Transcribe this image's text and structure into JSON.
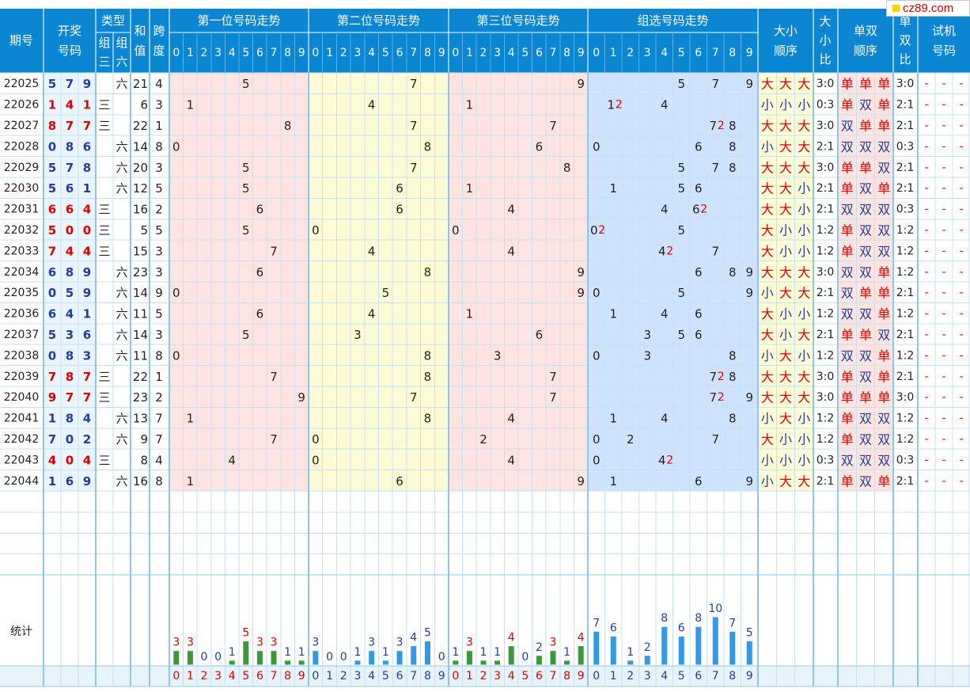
{
  "watermark": "cz89.com",
  "colors": {
    "header_bg": "#0a86d2",
    "header_text": "#ffffff",
    "grid_line": "#8fc7ec",
    "row_line": "#c4e2f6",
    "pos1_bg": "#fde4e0",
    "pos2_bg": "#fdfbd5",
    "pos3_bg": "#fde4e0",
    "group_bg": "#cfe2fb",
    "bigsmall_bg": "#fdfbd5",
    "oddeven_bg": "#fde4e0",
    "footer_bg": "#e6f3fb",
    "red": "#dd0000",
    "blue": "#1f3f9e",
    "dark": "#222222",
    "bar_green": "#3a9a3a",
    "bar_blue": "#3399e6"
  },
  "headers": {
    "period": "期号",
    "draw": "开奖号码",
    "type": "类型",
    "type_sub": [
      "组三",
      "组六"
    ],
    "sum": "和值",
    "span": "跨度",
    "pos1": "第一位号码走势",
    "pos2": "第二位号码走势",
    "pos3": "第三位号码走势",
    "group": "组选号码走势",
    "big_small_order": "大小顺序",
    "big_small_ratio": "大小比",
    "odd_even_order": "单双顺序",
    "odd_even_ratio": "单双比",
    "trial": "试机号码",
    "digits": [
      "0",
      "1",
      "2",
      "3",
      "4",
      "5",
      "6",
      "7",
      "8",
      "9"
    ]
  },
  "rows": [
    {
      "p": "22025",
      "d": "579",
      "t": "六",
      "s": "21",
      "k": "4",
      "g": [
        {
          "v": "5"
        },
        {
          "v": "7"
        },
        {
          "v": "9"
        }
      ],
      "bs": [
        "大",
        "大",
        "大"
      ],
      "bsr": "3:0",
      "oe": [
        "单",
        "单",
        "单"
      ],
      "oer": "3:0"
    },
    {
      "p": "22026",
      "d": "141",
      "t": "三",
      "s": "6",
      "k": "3",
      "g": [
        {
          "v": "1",
          "x": "2"
        },
        {
          "v": "4"
        }
      ],
      "bs": [
        "小",
        "小",
        "小"
      ],
      "bsr": "0:3",
      "oe": [
        "单",
        "双",
        "单"
      ],
      "oer": "2:1"
    },
    {
      "p": "22027",
      "d": "877",
      "t": "三",
      "s": "22",
      "k": "1",
      "g": [
        {
          "v": "7",
          "x": "2"
        },
        {
          "v": "8"
        }
      ],
      "bs": [
        "大",
        "大",
        "大"
      ],
      "bsr": "3:0",
      "oe": [
        "双",
        "单",
        "单"
      ],
      "oer": "2:1"
    },
    {
      "p": "22028",
      "d": "086",
      "t": "六",
      "s": "14",
      "k": "8",
      "g": [
        {
          "v": "0"
        },
        {
          "v": "6"
        },
        {
          "v": "8"
        }
      ],
      "bs": [
        "小",
        "大",
        "大"
      ],
      "bsr": "2:1",
      "oe": [
        "双",
        "双",
        "双"
      ],
      "oer": "0:3"
    },
    {
      "p": "22029",
      "d": "578",
      "t": "六",
      "s": "20",
      "k": "3",
      "g": [
        {
          "v": "5"
        },
        {
          "v": "7"
        },
        {
          "v": "8"
        }
      ],
      "bs": [
        "大",
        "大",
        "大"
      ],
      "bsr": "3:0",
      "oe": [
        "单",
        "单",
        "双"
      ],
      "oer": "2:1"
    },
    {
      "p": "22030",
      "d": "561",
      "t": "六",
      "s": "12",
      "k": "5",
      "g": [
        {
          "v": "1"
        },
        {
          "v": "5"
        },
        {
          "v": "6"
        }
      ],
      "bs": [
        "大",
        "大",
        "小"
      ],
      "bsr": "2:1",
      "oe": [
        "单",
        "双",
        "单"
      ],
      "oer": "2:1"
    },
    {
      "p": "22031",
      "d": "664",
      "t": "三",
      "s": "16",
      "k": "2",
      "g": [
        {
          "v": "4"
        },
        {
          "v": "6",
          "x": "2"
        }
      ],
      "bs": [
        "大",
        "大",
        "小"
      ],
      "bsr": "2:1",
      "oe": [
        "双",
        "双",
        "双"
      ],
      "oer": "0:3"
    },
    {
      "p": "22032",
      "d": "500",
      "t": "三",
      "s": "5",
      "k": "5",
      "g": [
        {
          "v": "0",
          "x": "2"
        },
        {
          "v": "5"
        }
      ],
      "bs": [
        "大",
        "小",
        "小"
      ],
      "bsr": "1:2",
      "oe": [
        "单",
        "双",
        "双"
      ],
      "oer": "1:2"
    },
    {
      "p": "22033",
      "d": "744",
      "t": "三",
      "s": "15",
      "k": "3",
      "g": [
        {
          "v": "4",
          "x": "2"
        },
        {
          "v": "7"
        }
      ],
      "bs": [
        "大",
        "小",
        "小"
      ],
      "bsr": "1:2",
      "oe": [
        "单",
        "双",
        "双"
      ],
      "oer": "1:2"
    },
    {
      "p": "22034",
      "d": "689",
      "t": "六",
      "s": "23",
      "k": "3",
      "g": [
        {
          "v": "6"
        },
        {
          "v": "8"
        },
        {
          "v": "9"
        }
      ],
      "bs": [
        "大",
        "大",
        "大"
      ],
      "bsr": "3:0",
      "oe": [
        "双",
        "双",
        "单"
      ],
      "oer": "1:2"
    },
    {
      "p": "22035",
      "d": "059",
      "t": "六",
      "s": "14",
      "k": "9",
      "g": [
        {
          "v": "0"
        },
        {
          "v": "5"
        },
        {
          "v": "9"
        }
      ],
      "bs": [
        "小",
        "大",
        "大"
      ],
      "bsr": "2:1",
      "oe": [
        "双",
        "单",
        "单"
      ],
      "oer": "2:1"
    },
    {
      "p": "22036",
      "d": "641",
      "t": "六",
      "s": "11",
      "k": "5",
      "g": [
        {
          "v": "1"
        },
        {
          "v": "4"
        },
        {
          "v": "6"
        }
      ],
      "bs": [
        "大",
        "小",
        "小"
      ],
      "bsr": "1:2",
      "oe": [
        "双",
        "双",
        "单"
      ],
      "oer": "1:2"
    },
    {
      "p": "22037",
      "d": "536",
      "t": "六",
      "s": "14",
      "k": "3",
      "g": [
        {
          "v": "3"
        },
        {
          "v": "5"
        },
        {
          "v": "6"
        }
      ],
      "bs": [
        "大",
        "小",
        "大"
      ],
      "bsr": "2:1",
      "oe": [
        "单",
        "单",
        "双"
      ],
      "oer": "2:1"
    },
    {
      "p": "22038",
      "d": "083",
      "t": "六",
      "s": "11",
      "k": "8",
      "g": [
        {
          "v": "0"
        },
        {
          "v": "3"
        },
        {
          "v": "8"
        }
      ],
      "bs": [
        "小",
        "大",
        "小"
      ],
      "bsr": "1:2",
      "oe": [
        "双",
        "双",
        "单"
      ],
      "oer": "1:2"
    },
    {
      "p": "22039",
      "d": "787",
      "t": "三",
      "s": "22",
      "k": "1",
      "g": [
        {
          "v": "7",
          "x": "2"
        },
        {
          "v": "8"
        }
      ],
      "bs": [
        "大",
        "大",
        "大"
      ],
      "bsr": "3:0",
      "oe": [
        "单",
        "双",
        "单"
      ],
      "oer": "2:1"
    },
    {
      "p": "22040",
      "d": "977",
      "t": "三",
      "s": "23",
      "k": "2",
      "g": [
        {
          "v": "7",
          "x": "2"
        },
        {
          "v": "9"
        }
      ],
      "bs": [
        "大",
        "大",
        "大"
      ],
      "bsr": "3:0",
      "oe": [
        "单",
        "单",
        "单"
      ],
      "oer": "3:0"
    },
    {
      "p": "22041",
      "d": "184",
      "t": "六",
      "s": "13",
      "k": "7",
      "g": [
        {
          "v": "1"
        },
        {
          "v": "4"
        },
        {
          "v": "8"
        }
      ],
      "bs": [
        "小",
        "大",
        "小"
      ],
      "bsr": "1:2",
      "oe": [
        "单",
        "双",
        "双"
      ],
      "oer": "1:2"
    },
    {
      "p": "22042",
      "d": "702",
      "t": "六",
      "s": "9",
      "k": "7",
      "g": [
        {
          "v": "0"
        },
        {
          "v": "2"
        },
        {
          "v": "7"
        }
      ],
      "bs": [
        "大",
        "小",
        "小"
      ],
      "bsr": "1:2",
      "oe": [
        "单",
        "双",
        "双"
      ],
      "oer": "1:2"
    },
    {
      "p": "22043",
      "d": "404",
      "t": "三",
      "s": "8",
      "k": "4",
      "g": [
        {
          "v": "0"
        },
        {
          "v": "4",
          "x": "2"
        }
      ],
      "bs": [
        "小",
        "小",
        "小"
      ],
      "bsr": "0:3",
      "oe": [
        "双",
        "双",
        "双"
      ],
      "oer": "0:3"
    },
    {
      "p": "22044",
      "d": "169",
      "t": "六",
      "s": "16",
      "k": "8",
      "g": [
        {
          "v": "1"
        },
        {
          "v": "6"
        },
        {
          "v": "9"
        }
      ],
      "bs": [
        "小",
        "大",
        "大"
      ],
      "bsr": "2:1",
      "oe": [
        "单",
        "双",
        "单"
      ],
      "oer": "2:1"
    }
  ],
  "trial_placeholder": "-",
  "stats_label": "统计",
  "stats": {
    "pos1": [
      3,
      3,
      0,
      0,
      1,
      5,
      3,
      3,
      1,
      1
    ],
    "pos2": [
      3,
      0,
      0,
      1,
      3,
      1,
      3,
      4,
      5,
      0
    ],
    "pos3": [
      1,
      3,
      1,
      1,
      4,
      0,
      2,
      3,
      1,
      4
    ],
    "group": [
      7,
      6,
      1,
      2,
      8,
      6,
      8,
      10,
      7,
      5
    ]
  }
}
